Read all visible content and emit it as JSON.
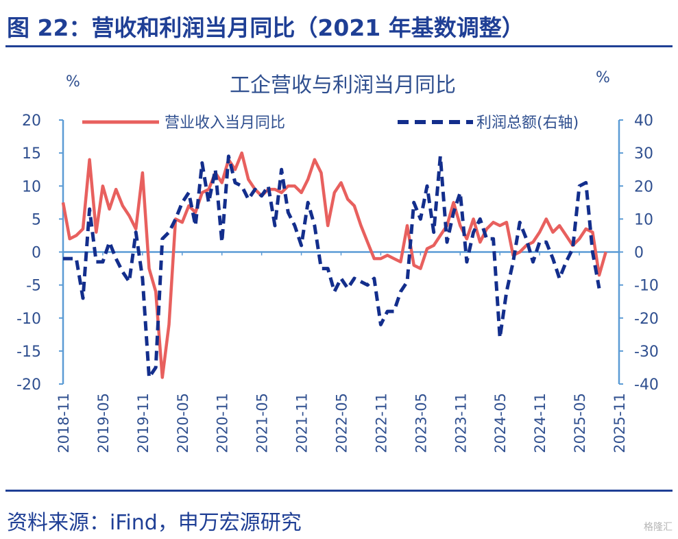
{
  "figure": {
    "title": "图 22：营收和利润当月同比（2021 年基数调整）",
    "source": "资料来源：iFind，申万宏源研究",
    "watermark": "格隆汇"
  },
  "colors": {
    "revenue": "#e8605e",
    "profit": "#132e8c",
    "axis": "#5b9bd5",
    "text": "#1f3f95",
    "tick_text": "#2f4f8f"
  },
  "chart_data": {
    "type": "line",
    "title": "工企营收与利润当月同比",
    "y_unit_left": "%",
    "y_unit_right": "%",
    "xlabel": "",
    "ylim_left": [
      -20,
      20
    ],
    "ylim_right": [
      -40,
      40
    ],
    "yticks_left": [
      "20",
      "15",
      "10",
      "5",
      "0",
      "-5",
      "-10",
      "-15",
      "-20"
    ],
    "yticks_right": [
      "40",
      "30",
      "20",
      "10",
      "0",
      "-10",
      "-20",
      "-30",
      "-40"
    ],
    "x_tick_labels": [
      "2018-11",
      "2019-05",
      "2019-11",
      "2020-05",
      "2020-11",
      "2021-05",
      "2021-11",
      "2022-05",
      "2022-11",
      "2023-05",
      "2023-11",
      "2024-05",
      "2024-11",
      "2025-05",
      "2025-11"
    ],
    "x_start": "2018-11",
    "legend": [
      "营业收入当月同比",
      "利润总额(右轴)"
    ],
    "legend_position": "top",
    "series": [
      {
        "name": "营业收入当月同比",
        "axis": "left",
        "style": "solid",
        "values": [
          7.5,
          2,
          2.5,
          3.5,
          14,
          3,
          10,
          6.5,
          9.5,
          7,
          5.5,
          3.5,
          12,
          -2.5,
          -6,
          -19,
          -11,
          5,
          4.5,
          7,
          6,
          9,
          9.5,
          12,
          10.5,
          14,
          12.5,
          15,
          11,
          9.5,
          8.5,
          9.5,
          9.5,
          9,
          10,
          10,
          9,
          11,
          14,
          12,
          4,
          9,
          10.5,
          8,
          7,
          4,
          1.5,
          -1,
          -1,
          -0.5,
          -1,
          -1.5,
          4,
          -2,
          -2.5,
          0.5,
          1,
          2.5,
          4,
          7.5,
          4,
          2,
          5,
          1.5,
          3.5,
          4.5,
          4,
          4.5,
          -0.5,
          0,
          1,
          1.5,
          3,
          5,
          3,
          4,
          2.5,
          1,
          2,
          3.5,
          3,
          -3.5,
          0
        ]
      },
      {
        "name": "利润总额(右轴)",
        "axis": "right",
        "style": "dashed",
        "values": [
          -2,
          -2,
          -2,
          -14,
          13,
          -3,
          -3,
          3,
          -2,
          -6,
          -9,
          6,
          -8,
          -38,
          -35,
          4,
          6,
          10,
          15,
          18,
          8,
          27,
          15,
          25,
          3,
          29,
          21,
          20,
          16,
          19,
          17,
          20,
          8,
          25,
          12,
          8,
          2,
          15,
          8,
          -5,
          -5,
          -12,
          -8,
          -11,
          -8,
          -9,
          -10,
          -8,
          -22,
          -18,
          -18,
          -12,
          -9,
          15,
          10,
          20,
          6,
          29,
          3,
          12,
          18,
          -3,
          6,
          10,
          4,
          4,
          -26,
          -12,
          -3,
          9,
          4,
          -3,
          3,
          3,
          -2,
          -8,
          -3,
          1,
          20,
          21,
          0,
          -11
        ]
      }
    ]
  }
}
